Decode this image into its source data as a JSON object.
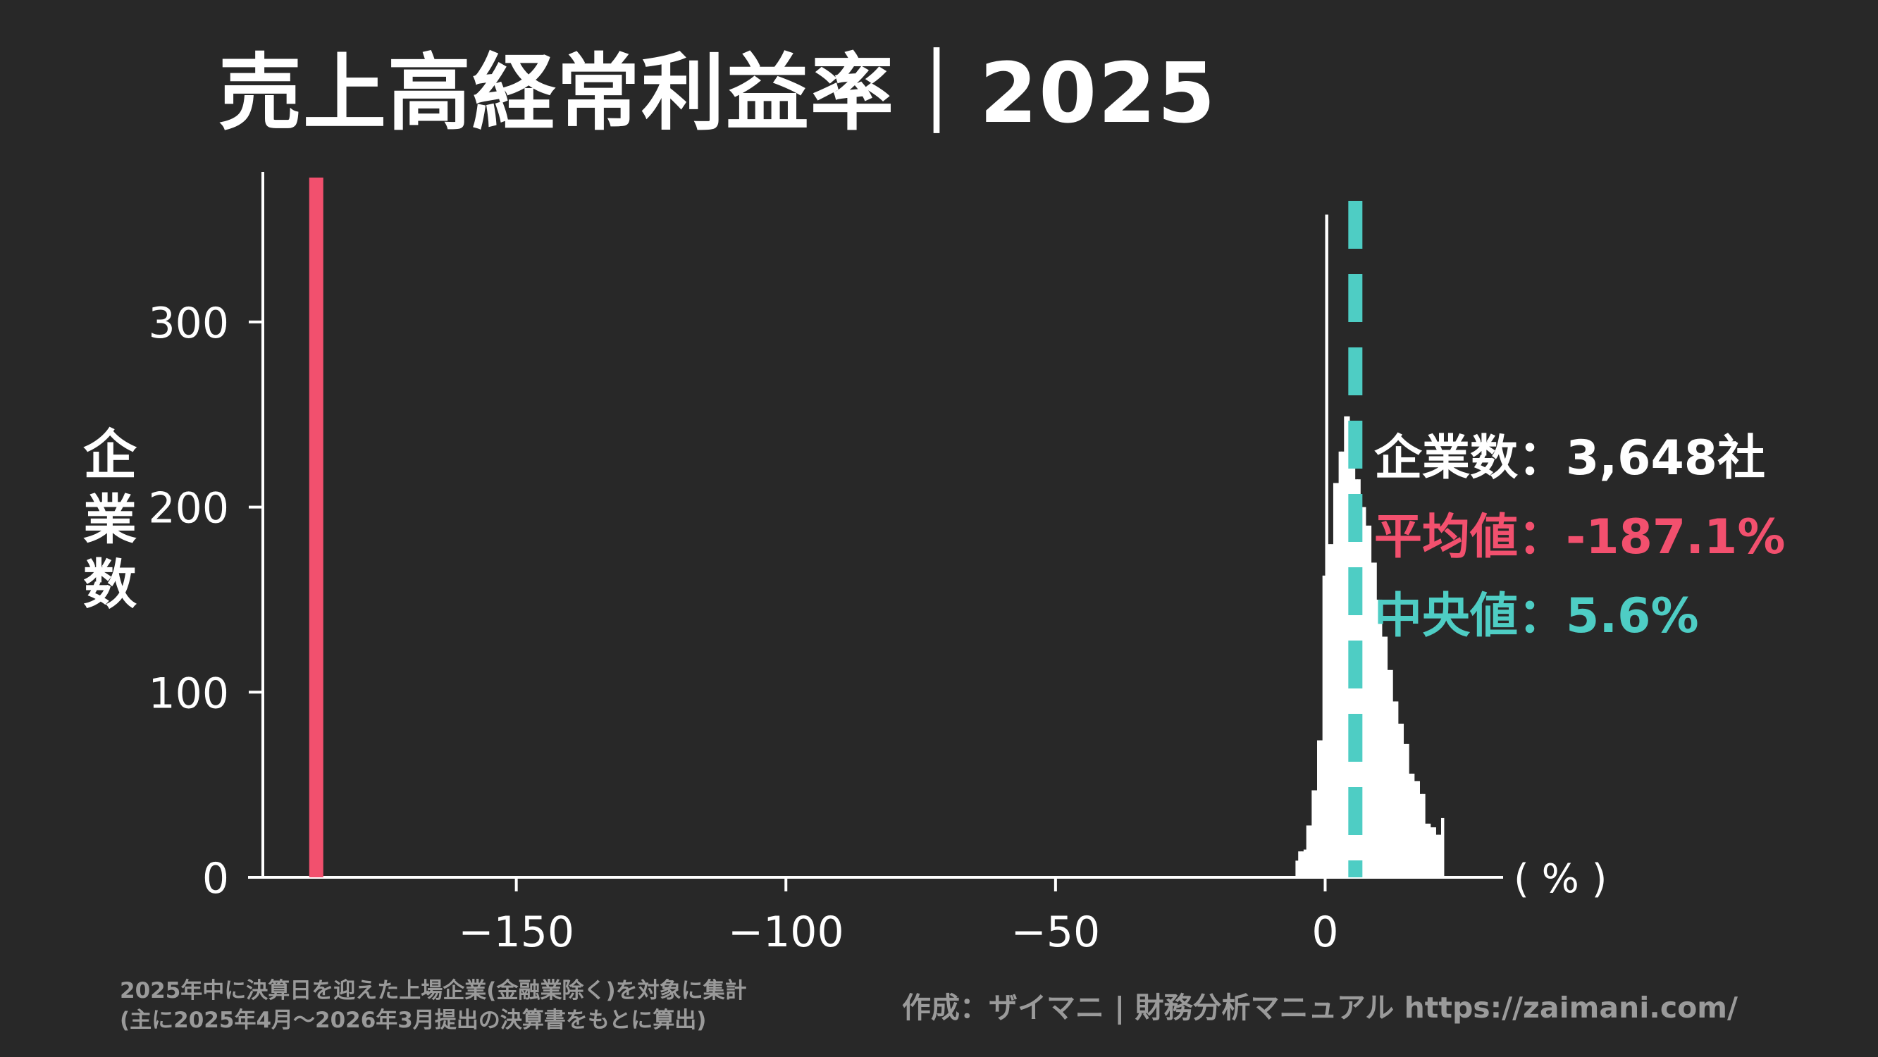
{
  "title": "売上高経常利益率｜2025",
  "ylabel_chars": [
    "企",
    "業",
    "数"
  ],
  "unit_label": "( % )",
  "stats": {
    "count_label": "企業数",
    "count_value": "3,648社",
    "mean_label": "平均値",
    "mean_value": "-187.1%",
    "median_label": "中央値",
    "median_value": "5.6%",
    "separator": "："
  },
  "footnote": [
    "2025年中に決算日を迎えた上場企業(金融業除く)を対象に集計",
    "(主に2025年4月〜2026年3月提出の決算書をもとに算出)"
  ],
  "credit": "作成：ザイマニ | 財務分析マニュアル https://zaimani.com/",
  "colors": {
    "background": "#282828",
    "bars": "#ffffff",
    "mean": "#f2506e",
    "median": "#4ecdc4",
    "text": "#ffffff",
    "muted": "#9a9a9a"
  },
  "chart_data": {
    "type": "bar",
    "title": "売上高経常利益率｜2025",
    "xlabel": "( % )",
    "ylabel": "企業数",
    "xlim": [
      -197,
      33
    ],
    "ylim": [
      0,
      378
    ],
    "xticks": [
      -150,
      -100,
      -50,
      0
    ],
    "xtick_labels": [
      "−150",
      "−100",
      "−50",
      "0"
    ],
    "yticks": [
      0,
      100,
      200,
      300
    ],
    "ytick_labels": [
      "0",
      "100",
      "200",
      "300"
    ],
    "bin_width": 0.5,
    "bins": [
      [
        -5.5,
        9
      ],
      [
        -5.0,
        14
      ],
      [
        -4.5,
        14
      ],
      [
        -4.0,
        15
      ],
      [
        -3.5,
        28
      ],
      [
        -3.0,
        28
      ],
      [
        -2.5,
        47
      ],
      [
        -2.0,
        47
      ],
      [
        -1.5,
        74
      ],
      [
        -1.0,
        74
      ],
      [
        -0.5,
        163
      ],
      [
        0.0,
        358
      ],
      [
        0.5,
        180
      ],
      [
        1.0,
        180
      ],
      [
        1.5,
        213
      ],
      [
        2.0,
        213
      ],
      [
        2.5,
        230
      ],
      [
        3.0,
        230
      ],
      [
        3.5,
        249
      ],
      [
        4.0,
        249
      ],
      [
        4.5,
        245
      ],
      [
        5.0,
        245
      ],
      [
        5.5,
        215
      ],
      [
        6.0,
        215
      ],
      [
        6.5,
        200
      ],
      [
        7.0,
        200
      ],
      [
        7.5,
        190
      ],
      [
        8.0,
        190
      ],
      [
        8.5,
        170
      ],
      [
        9.0,
        170
      ],
      [
        9.5,
        150
      ],
      [
        10.0,
        150
      ],
      [
        10.5,
        130
      ],
      [
        11.0,
        130
      ],
      [
        11.5,
        112
      ],
      [
        12.0,
        112
      ],
      [
        12.5,
        95
      ],
      [
        13.0,
        95
      ],
      [
        13.5,
        83
      ],
      [
        14.0,
        83
      ],
      [
        14.5,
        72
      ],
      [
        15.0,
        72
      ],
      [
        15.5,
        56
      ],
      [
        16.0,
        56
      ],
      [
        16.5,
        52
      ],
      [
        17.0,
        52
      ],
      [
        17.5,
        45
      ],
      [
        18.0,
        45
      ],
      [
        18.5,
        29
      ],
      [
        19.0,
        29
      ],
      [
        19.5,
        27
      ],
      [
        20.0,
        27
      ],
      [
        20.5,
        23
      ],
      [
        21.0,
        23
      ],
      [
        21.5,
        32
      ]
    ],
    "mean": -187.1,
    "median": 5.6
  }
}
